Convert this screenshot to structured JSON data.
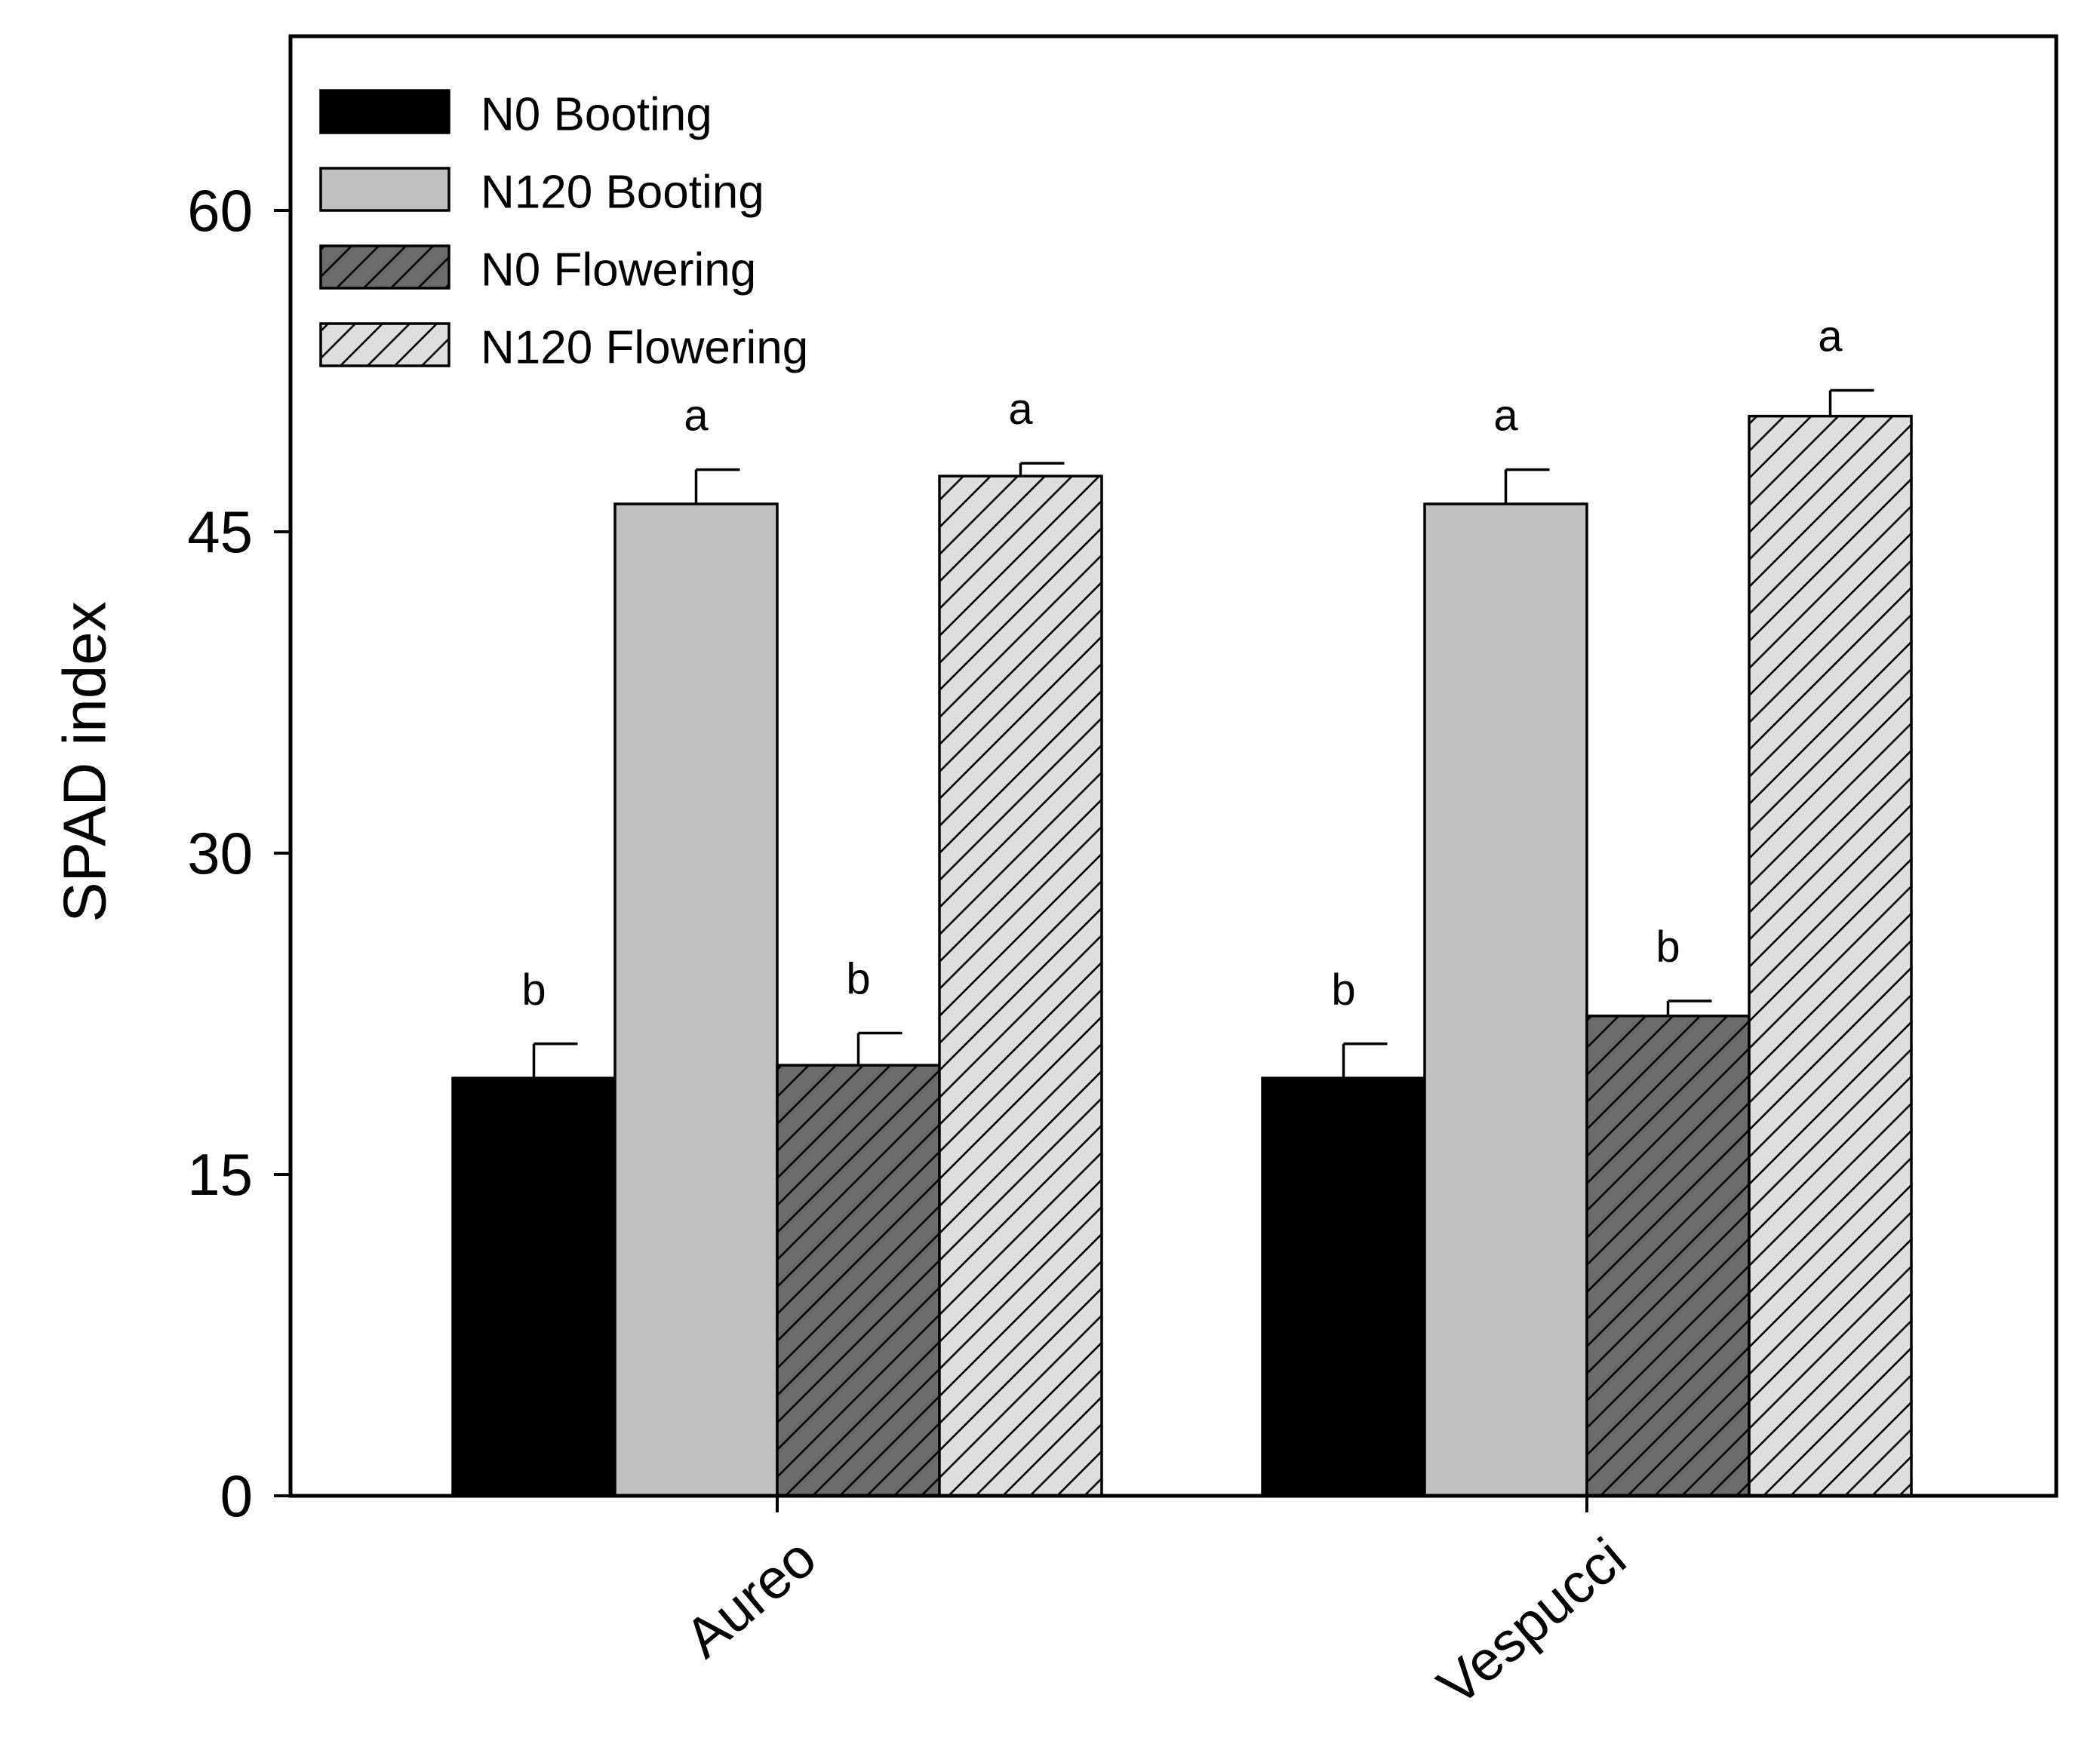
{
  "chart_data": {
    "type": "bar",
    "title": "",
    "xlabel": "",
    "ylabel": "SPAD index",
    "ylim": [
      0,
      68
    ],
    "yticks": [
      "0",
      "15",
      "30",
      "45",
      "60"
    ],
    "categories": [
      "Aureo",
      "Vespucci"
    ],
    "legend_position": "top-left",
    "series": [
      {
        "name": "N0 Booting",
        "values": [
          19.5,
          19.5
        ],
        "errors": [
          1.6,
          1.6
        ],
        "letters": [
          "b",
          "b"
        ],
        "fill": "#000000",
        "hatch": false
      },
      {
        "name": "N120 Booting",
        "values": [
          46.3,
          46.3
        ],
        "errors": [
          1.6,
          1.6
        ],
        "letters": [
          "a",
          "a"
        ],
        "fill": "#c0c0c0",
        "hatch": false
      },
      {
        "name": "N0 Flowering",
        "values": [
          20.1,
          22.4
        ],
        "errors": [
          1.5,
          0.7
        ],
        "letters": [
          "b",
          "b"
        ],
        "fill": "#6b6b6b",
        "hatch": true
      },
      {
        "name": "N120 Flowering",
        "values": [
          47.6,
          50.4
        ],
        "errors": [
          0.6,
          1.2
        ],
        "letters": [
          "a",
          "a"
        ],
        "fill": "#dedede",
        "hatch": true
      }
    ]
  }
}
